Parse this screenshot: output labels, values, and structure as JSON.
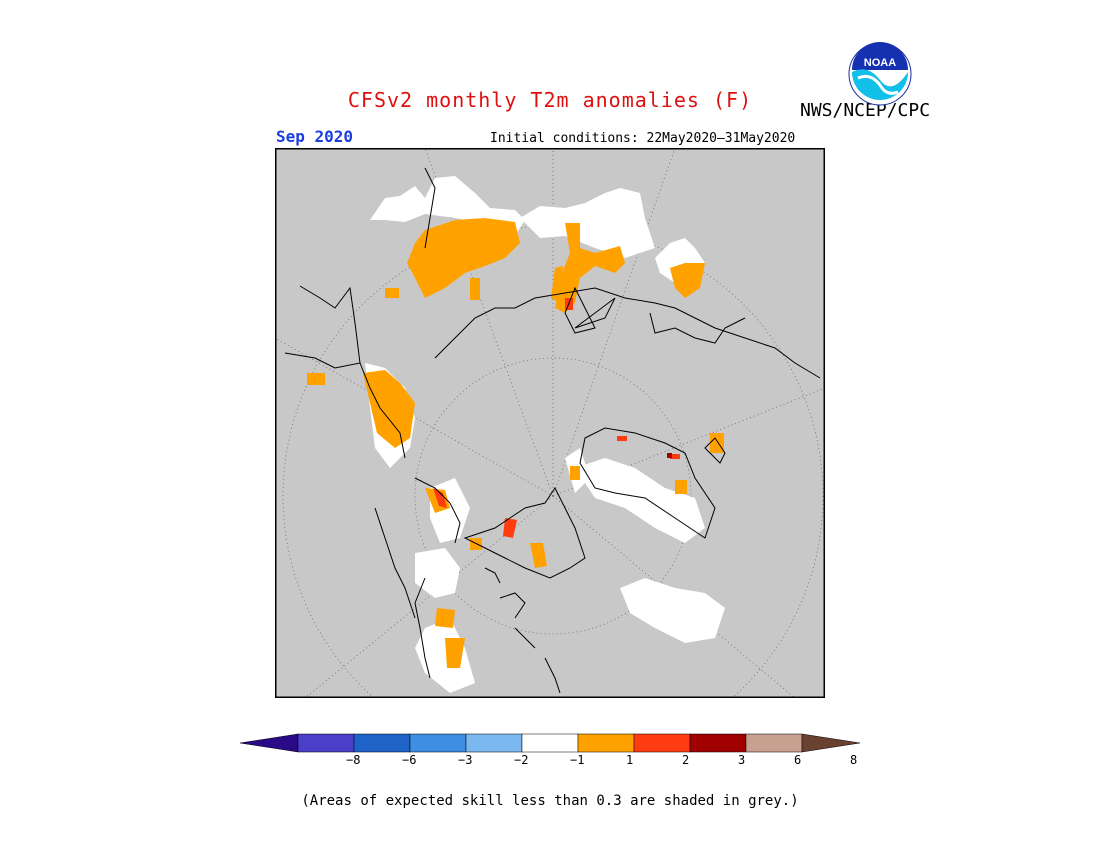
{
  "header": {
    "title": "CFSv2 monthly T2m anomalies (F)",
    "agency": "NWS/NCEP/CPC",
    "logo_text": "NOAA",
    "valid_month": "Sep 2020",
    "initial_conditions": "Initial conditions: 22May2020–31May2020"
  },
  "colorbar": {
    "colors": [
      "#2a0a86",
      "#4b3ec8",
      "#1f63c8",
      "#3e8ee4",
      "#7bb8f0",
      "#ffffff",
      "#ffa200",
      "#ff3c10",
      "#a00000",
      "#c8a090",
      "#6a4030"
    ],
    "labels": [
      "−8",
      "−6",
      "−3",
      "−2",
      "−1",
      "1",
      "2",
      "3",
      "6",
      "8"
    ]
  },
  "colors": {
    "land_skill_mask": "#c8c8c8",
    "neutral": "#ffffff",
    "warm_1_2": "#ffa200",
    "warm_2_3": "#ff3c10",
    "warm_3_6": "#a00000"
  },
  "footnote": "(Areas of expected skill less than 0.3 are shaded in grey.)"
}
